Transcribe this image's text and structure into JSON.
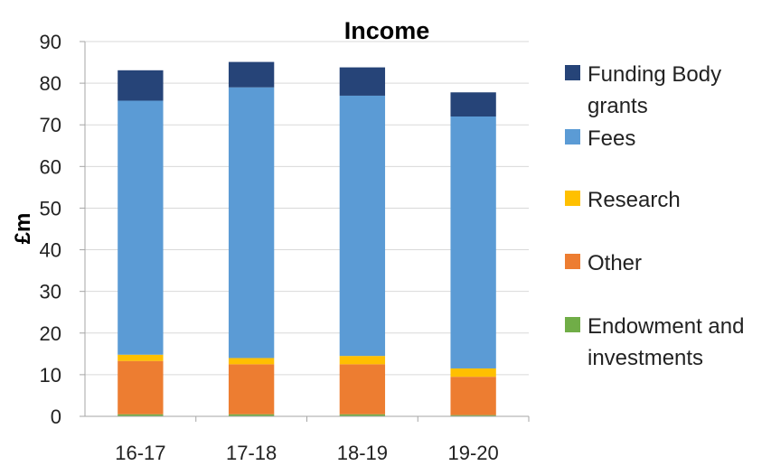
{
  "chart_data": {
    "type": "bar",
    "stacked": true,
    "title": "Income",
    "ylabel": "£m",
    "xlabel": "",
    "ylim": [
      0,
      90
    ],
    "yticks": [
      0,
      10,
      20,
      30,
      40,
      50,
      60,
      70,
      80,
      90
    ],
    "grid": true,
    "legend_position": "right",
    "categories": [
      "16-17",
      "17-18",
      "18-19",
      "19-20"
    ],
    "series": [
      {
        "name": "Endowment and investments",
        "color": "#70ad47",
        "values": [
          0.5,
          0.5,
          0.5,
          0.3
        ]
      },
      {
        "name": "Other",
        "color": "#ed7d31",
        "values": [
          12.8,
          12.0,
          12.0,
          9.2
        ]
      },
      {
        "name": "Research",
        "color": "#ffc000",
        "values": [
          1.5,
          1.5,
          2.0,
          2.0
        ]
      },
      {
        "name": "Fees",
        "color": "#5b9bd5",
        "values": [
          61.0,
          65.0,
          62.5,
          60.5
        ]
      },
      {
        "name": "Funding Body grants",
        "color": "#264478",
        "values": [
          7.3,
          6.1,
          6.8,
          5.8
        ]
      }
    ],
    "legend_order": [
      "Funding Body grants",
      "Fees",
      "Research",
      "Other",
      "Endowment and investments"
    ]
  }
}
